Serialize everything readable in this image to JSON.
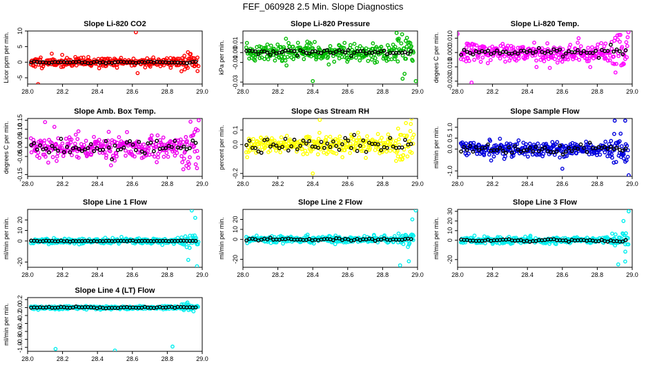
{
  "title": "FEF_060928  2.5 Min. Slope Diagnostics",
  "chart_data": [
    {
      "type": "scatter",
      "title": "Slope Li-820 CO2",
      "ylabel": "Licor ppm per min.",
      "color": "#ff0000",
      "xlim": [
        28.0,
        29.0
      ],
      "ylim": [
        -7,
        10
      ],
      "xticks": [
        "28.0",
        "28.2",
        "28.4",
        "28.6",
        "28.8",
        "29.0"
      ],
      "yticks": [
        {
          "v": -5,
          "l": "-5"
        },
        {
          "v": 0,
          "l": "0"
        },
        {
          "v": 5,
          "l": "5"
        },
        {
          "v": 10,
          "l": "10"
        }
      ],
      "spread": 1.4,
      "black_spread": 0.3,
      "outliers": [
        [
          28.62,
          9.6
        ],
        [
          28.06,
          -7
        ],
        [
          28.63,
          -3.5
        ]
      ],
      "seed": 11
    },
    {
      "type": "scatter",
      "title": "Slope Li-820 Pressure",
      "ylabel": "kPa per min.",
      "color": "#00bb00",
      "xlim": [
        28.0,
        29.0
      ],
      "ylim": [
        -0.032,
        0.022
      ],
      "xticks": [
        "28.0",
        "28.2",
        "28.4",
        "28.6",
        "28.8",
        "29.0"
      ],
      "yticks": [
        {
          "v": -0.03,
          "l": "-0.03"
        },
        {
          "v": -0.01,
          "l": "-0.01"
        },
        {
          "v": 0.0,
          "l": "0.00"
        },
        {
          "v": 0.01,
          "l": "0.01"
        }
      ],
      "spread": 0.008,
      "black_spread": 0.003,
      "outliers": [
        [
          28.4,
          -0.029
        ],
        [
          28.99,
          -0.029
        ],
        [
          28.88,
          0.02
        ]
      ],
      "seed": 22
    },
    {
      "type": "scatter",
      "title": "Slope Li-820 Temp.",
      "ylabel": "degees C per min.",
      "color": "#ff00ff",
      "xlim": [
        28.0,
        29.0
      ],
      "ylim": [
        -0.022,
        0.015
      ],
      "xticks": [
        "28.0",
        "28.2",
        "28.4",
        "28.6",
        "28.8",
        "29.0"
      ],
      "yticks": [
        {
          "v": -0.02,
          "l": "-0.020"
        },
        {
          "v": -0.01,
          "l": "-0.010"
        },
        {
          "v": 0.0,
          "l": "0.000"
        },
        {
          "v": 0.01,
          "l": "0.010"
        }
      ],
      "spread": 0.006,
      "black_spread": 0.003,
      "outliers": [
        [
          28.08,
          -0.021
        ],
        [
          28.0,
          0.013
        ]
      ],
      "seed": 33
    },
    {
      "type": "scatter",
      "title": "Slope Amb. Box Temp.",
      "ylabel": "degrees C per min.",
      "color": "#ee00ee",
      "xlim": [
        28.0,
        29.0
      ],
      "ylim": [
        -0.16,
        0.16
      ],
      "xticks": [
        "28.0",
        "28.2",
        "28.4",
        "28.6",
        "28.8",
        "29.0"
      ],
      "yticks": [
        {
          "v": -0.15,
          "l": "-0.15"
        },
        {
          "v": -0.05,
          "l": "-0.05"
        },
        {
          "v": 0.0,
          "l": "0.00"
        },
        {
          "v": 0.05,
          "l": "0.05"
        },
        {
          "v": 0.1,
          "l": "0.10"
        },
        {
          "v": 0.15,
          "l": "0.15"
        }
      ],
      "spread": 0.06,
      "black_spread": 0.04,
      "outliers": [
        [
          28.98,
          0.15
        ],
        [
          28.1,
          0.14
        ]
      ],
      "seed": 44
    },
    {
      "type": "scatter",
      "title": "Slope Gas Stream RH",
      "ylabel": "percent per min.",
      "color": "#ffff00",
      "xlim": [
        28.0,
        29.0
      ],
      "ylim": [
        -0.22,
        0.18
      ],
      "xticks": [
        "28.0",
        "28.2",
        "28.4",
        "28.6",
        "28.8",
        "29.0"
      ],
      "yticks": [
        {
          "v": -0.2,
          "l": "-0.2"
        },
        {
          "v": 0.0,
          "l": "0.0"
        },
        {
          "v": 0.1,
          "l": "0.1"
        }
      ],
      "spread": 0.06,
      "black_spread": 0.05,
      "outliers": [
        [
          28.4,
          -0.2
        ],
        [
          28.44,
          0.17
        ]
      ],
      "seed": 55
    },
    {
      "type": "scatter",
      "title": "Slope Sample Flow",
      "ylabel": "ml/min per min.",
      "color": "#0000dd",
      "xlim": [
        28.0,
        29.0
      ],
      "ylim": [
        -1.25,
        1.4
      ],
      "xticks": [
        "28.0",
        "28.2",
        "28.4",
        "28.6",
        "28.8",
        "29.0"
      ],
      "yticks": [
        {
          "v": -1.0,
          "l": "-1.0"
        },
        {
          "v": 0.0,
          "l": "0.0"
        },
        {
          "v": 0.5,
          "l": "0.5"
        },
        {
          "v": 1.0,
          "l": "1.0"
        }
      ],
      "spread": 0.3,
      "black_spread": 0.2,
      "outliers": [
        [
          28.9,
          1.3
        ],
        [
          28.96,
          1.3
        ],
        [
          28.98,
          -1.2
        ],
        [
          28.6,
          -0.9
        ]
      ],
      "seed": 66
    },
    {
      "type": "scatter",
      "title": "Slope Line 1 Flow",
      "ylabel": "ml/min per min.",
      "color": "#00eeee",
      "xlim": [
        28.0,
        29.0
      ],
      "ylim": [
        -25,
        30
      ],
      "xticks": [
        "28.0",
        "28.2",
        "28.4",
        "28.6",
        "28.8",
        "29.0"
      ],
      "yticks": [
        {
          "v": -20,
          "l": "-20"
        },
        {
          "v": 0,
          "l": "0"
        },
        {
          "v": 10,
          "l": "10"
        },
        {
          "v": 20,
          "l": "20"
        }
      ],
      "spread": 2.5,
      "black_spread": 0.4,
      "outliers": [
        [
          28.94,
          29
        ],
        [
          28.97,
          -24
        ],
        [
          28.92,
          -18
        ],
        [
          28.96,
          22
        ]
      ],
      "seed": 77
    },
    {
      "type": "scatter",
      "title": "Slope Line 2 Flow",
      "ylabel": "ml/min per min.",
      "color": "#00eeee",
      "xlim": [
        28.0,
        29.0
      ],
      "ylim": [
        -28,
        30
      ],
      "xticks": [
        "28.0",
        "28.2",
        "28.4",
        "28.6",
        "28.8",
        "29.0"
      ],
      "yticks": [
        {
          "v": -20,
          "l": "-20"
        },
        {
          "v": 0,
          "l": "0"
        },
        {
          "v": 10,
          "l": "10"
        },
        {
          "v": 20,
          "l": "20"
        }
      ],
      "spread": 3,
      "black_spread": 1.5,
      "outliers": [
        [
          28.99,
          29
        ],
        [
          28.9,
          -26
        ],
        [
          28.95,
          -22
        ],
        [
          28.97,
          20
        ]
      ],
      "seed": 88
    },
    {
      "type": "scatter",
      "title": "Slope Line 3 Flow",
      "ylabel": "ml/min per min.",
      "color": "#00eeee",
      "xlim": [
        28.0,
        29.0
      ],
      "ylim": [
        -28,
        32
      ],
      "xticks": [
        "28.0",
        "28.2",
        "28.4",
        "28.6",
        "28.8",
        "29.0"
      ],
      "yticks": [
        {
          "v": -20,
          "l": "-20"
        },
        {
          "v": 0,
          "l": "0"
        },
        {
          "v": 10,
          "l": "10"
        },
        {
          "v": 20,
          "l": "20"
        },
        {
          "v": 30,
          "l": "30"
        }
      ],
      "spread": 3,
      "black_spread": 1.5,
      "outliers": [
        [
          28.98,
          30
        ],
        [
          28.92,
          -25
        ],
        [
          28.96,
          -22
        ],
        [
          28.95,
          20
        ]
      ],
      "seed": 99
    },
    {
      "type": "scatter",
      "title": "Slope Line 4 (LT) Flow",
      "ylabel": "ml/min per min.",
      "color": "#00eeee",
      "xlim": [
        28.0,
        29.0
      ],
      "ylim": [
        -1.1,
        0.25
      ],
      "xticks": [
        "28.0",
        "28.2",
        "28.4",
        "28.6",
        "28.8",
        "29.0"
      ],
      "yticks": [
        {
          "v": -1.0,
          "l": "-1.0"
        },
        {
          "v": -0.8,
          "l": "-0.8"
        },
        {
          "v": -0.6,
          "l": "-0.6"
        },
        {
          "v": -0.4,
          "l": "-0.4"
        },
        {
          "v": -0.2,
          "l": "-0.2"
        },
        {
          "v": 0.0,
          "l": "0.0"
        },
        {
          "v": 0.2,
          "l": "0.2"
        }
      ],
      "spread": 0.04,
      "black_spread": 0.02,
      "outliers": [
        [
          28.16,
          -1.04
        ],
        [
          28.5,
          -1.08
        ],
        [
          28.83,
          -0.98
        ]
      ],
      "seed": 110
    }
  ]
}
